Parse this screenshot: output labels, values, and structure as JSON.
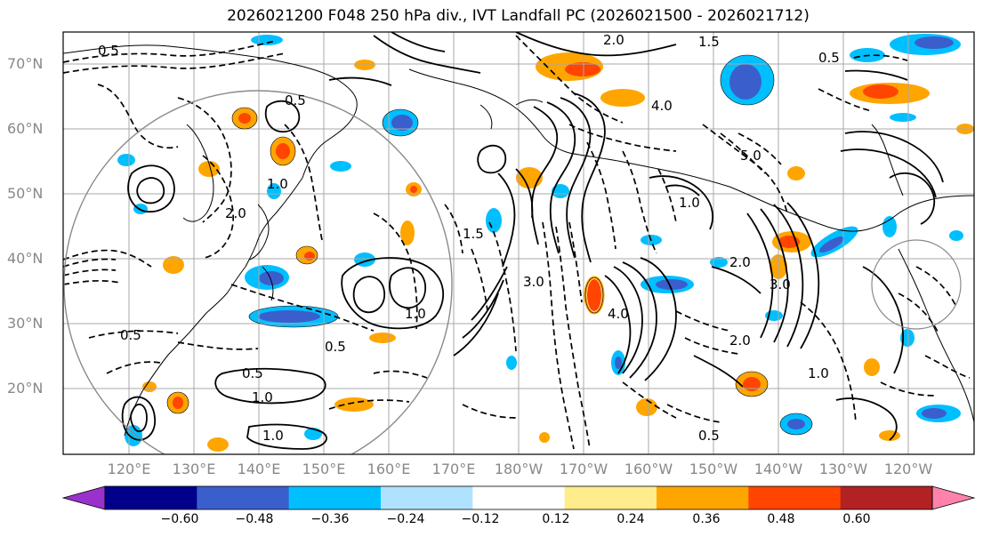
{
  "title": "2026021200 F048 250 hPa div., IVT Landfall PC (2026021500 - 2026021712)",
  "lat_labels": [
    "70°N",
    "60°N",
    "50°N",
    "40°N",
    "30°N",
    "20°N"
  ],
  "lon_labels": [
    "120°E",
    "130°E",
    "140°E",
    "150°E",
    "160°E",
    "170°E",
    "180°W",
    "170°W",
    "160°W",
    "150°W",
    "140°W",
    "130°W",
    "120°W"
  ],
  "colorbar": {
    "ticks": [
      "−0.60",
      "−0.48",
      "−0.36",
      "−0.24",
      "−0.12",
      "0.12",
      "0.24",
      "0.36",
      "0.48",
      "0.60"
    ],
    "colors": [
      "#9932cc",
      "#00008b",
      "#3a5fcd",
      "#00bfff",
      "#b0e2ff",
      "#ffffff",
      "#ffec8b",
      "#ffa500",
      "#ff4500",
      "#b22222",
      "#ff82ab"
    ]
  },
  "contour_labels": [
    "0.5",
    "1.0",
    "1.5",
    "2.0",
    "3.0",
    "4.0",
    "5.0",
    "0.5",
    "1.0",
    "2.0",
    "0.5",
    "1.0",
    "0.5",
    "0.5",
    "1.0",
    "2.0",
    "3.0",
    "4.0",
    "0.5",
    "1.0",
    "1.5",
    "2.0",
    "0.5",
    "1.0"
  ]
}
